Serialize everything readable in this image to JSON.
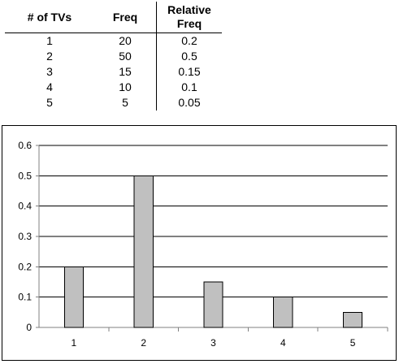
{
  "table": {
    "headers": [
      "# of TVs",
      "Freq",
      "Relative Freq"
    ],
    "header_lines": [
      [
        "# of TVs"
      ],
      [
        "Freq"
      ],
      [
        "Relative",
        "Freq"
      ]
    ],
    "rows": [
      [
        "1",
        "20",
        "0.2"
      ],
      [
        "2",
        "50",
        "0.5"
      ],
      [
        "3",
        "15",
        "0.15"
      ],
      [
        "4",
        "10",
        "0.1"
      ],
      [
        "5",
        "5",
        "0.05"
      ]
    ]
  },
  "chart_data": {
    "type": "bar",
    "title": "",
    "xlabel": "",
    "ylabel": "",
    "categories": [
      "1",
      "2",
      "3",
      "4",
      "5"
    ],
    "values": [
      0.2,
      0.5,
      0.15,
      0.1,
      0.05
    ],
    "ylim": [
      0,
      0.6
    ],
    "y_ticks": [
      "0",
      "0.1",
      "0.2",
      "0.3",
      "0.4",
      "0.5",
      "0.6"
    ],
    "grid": true,
    "legend": "none",
    "colors": {
      "bar_fill": "#c0c0c0",
      "bar_stroke": "#000000",
      "grid": "#000000",
      "axis": "#808080"
    }
  }
}
